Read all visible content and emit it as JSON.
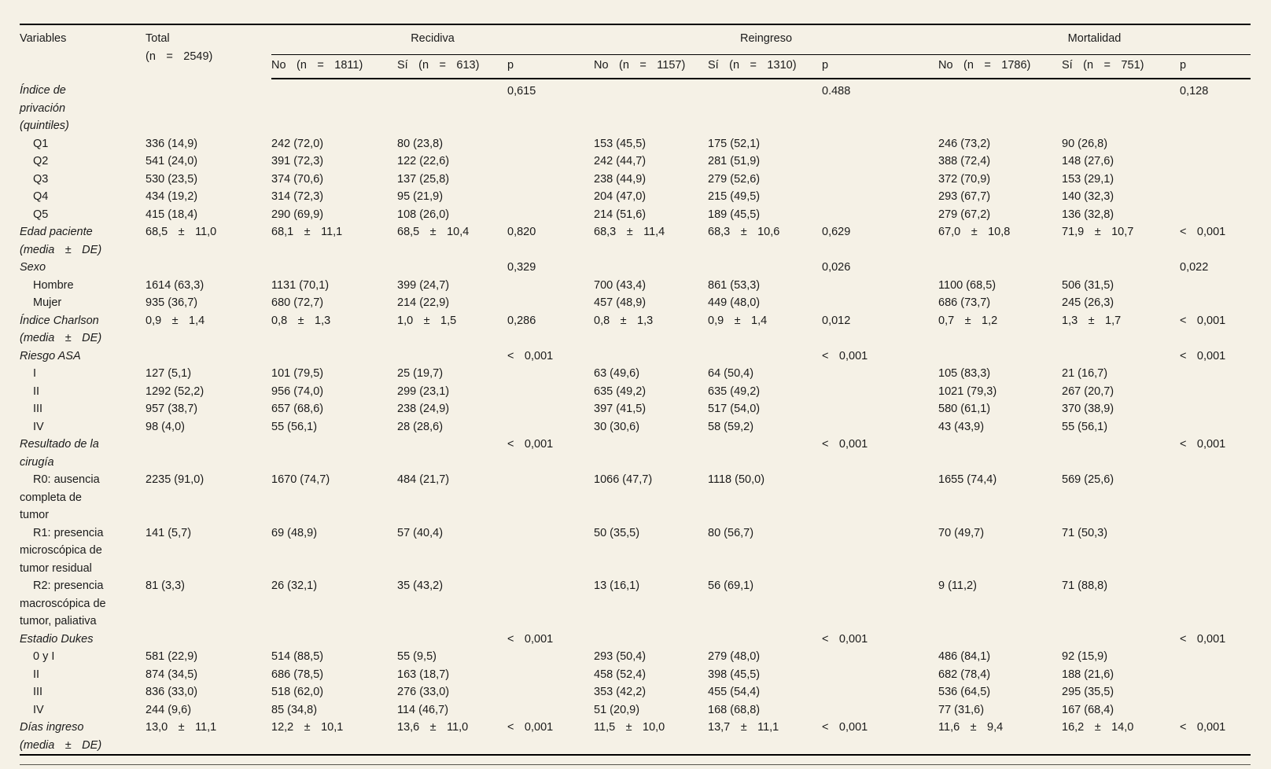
{
  "table": {
    "headers": {
      "variables": "Variables",
      "total_line1": "Total",
      "total_line2": "(n = 2549)",
      "groups": [
        {
          "label": "Recidiva",
          "sub": [
            "No (n = 1811)",
            "Sí (n = 613)",
            "p"
          ]
        },
        {
          "label": "Reingreso",
          "sub": [
            "No (n = 1157)",
            "Sí (n = 1310)",
            "p"
          ]
        },
        {
          "label": "Mortalidad",
          "sub": [
            "No (n = 1786)",
            "Sí (n = 751)",
            "p"
          ]
        }
      ]
    },
    "rows": [
      {
        "label": "Índice de privación (quintiles)",
        "style": "group",
        "cells": [
          "",
          "",
          "",
          "0,615",
          "",
          "",
          "0.488",
          "",
          "",
          "0,128"
        ]
      },
      {
        "label": "Q1",
        "style": "item",
        "cells": [
          "336 (14,9)",
          "242 (72,0)",
          "80 (23,8)",
          "",
          "153 (45,5)",
          "175 (52,1)",
          "",
          "246 (73,2)",
          "90 (26,8)",
          ""
        ]
      },
      {
        "label": "Q2",
        "style": "item",
        "cells": [
          "541 (24,0)",
          "391 (72,3)",
          "122 (22,6)",
          "",
          "242 (44,7)",
          "281 (51,9)",
          "",
          "388 (72,4)",
          "148 (27,6)",
          ""
        ]
      },
      {
        "label": "Q3",
        "style": "item",
        "cells": [
          "530 (23,5)",
          "374 (70,6)",
          "137 (25,8)",
          "",
          "238 (44,9)",
          "279 (52,6)",
          "",
          "372 (70,9)",
          "153 (29,1)",
          ""
        ]
      },
      {
        "label": "Q4",
        "style": "item",
        "cells": [
          "434 (19,2)",
          "314 (72,3)",
          "95 (21,9)",
          "",
          "204 (47,0)",
          "215 (49,5)",
          "",
          "293 (67,7)",
          "140 (32,3)",
          ""
        ]
      },
      {
        "label": "Q5",
        "style": "item",
        "cells": [
          "415 (18,4)",
          "290 (69,9)",
          "108 (26,0)",
          "",
          "214 (51,6)",
          "189 (45,5)",
          "",
          "279 (67,2)",
          "136 (32,8)",
          ""
        ]
      },
      {
        "label": "Edad paciente",
        "label2": "(media ± DE)",
        "style": "group",
        "cells": [
          "68,5 ± 11,0",
          "68,1 ± 11,1",
          "68,5 ± 10,4",
          "0,820",
          "68,3 ± 11,4",
          "68,3 ± 10,6",
          "0,629",
          "67,0 ± 10,8",
          "71,9 ± 10,7",
          "< 0,001"
        ]
      },
      {
        "label": "Sexo",
        "style": "group",
        "cells": [
          "",
          "",
          "",
          "0,329",
          "",
          "",
          "0,026",
          "",
          "",
          "0,022"
        ]
      },
      {
        "label": "Hombre",
        "style": "item",
        "cells": [
          "1614 (63,3)",
          "1131 (70,1)",
          "399 (24,7)",
          "",
          "700 (43,4)",
          "861 (53,3)",
          "",
          "1100 (68,5)",
          "506 (31,5)",
          ""
        ]
      },
      {
        "label": "Mujer",
        "style": "item",
        "cells": [
          "935 (36,7)",
          "680 (72,7)",
          "214 (22,9)",
          "",
          "457 (48,9)",
          "449 (48,0)",
          "",
          "686 (73,7)",
          "245 (26,3)",
          ""
        ]
      },
      {
        "label": "Índice Charlson",
        "label2": "(media ± DE)",
        "style": "group",
        "cells": [
          "0,9 ± 1,4",
          "0,8 ± 1,3",
          "1,0 ± 1,5",
          "0,286",
          "0,8 ± 1,3",
          "0,9 ± 1,4",
          "0,012",
          "0,7 ± 1,2",
          "1,3 ± 1,7",
          "< 0,001"
        ]
      },
      {
        "label": "Riesgo ASA",
        "style": "group",
        "cells": [
          "",
          "",
          "",
          "< 0,001",
          "",
          "",
          "< 0,001",
          "",
          "",
          "< 0,001"
        ]
      },
      {
        "label": "I",
        "style": "item",
        "cells": [
          "127 (5,1)",
          "101 (79,5)",
          "25 (19,7)",
          "",
          "63 (49,6)",
          "64 (50,4)",
          "",
          "105 (83,3)",
          "21 (16,7)",
          ""
        ]
      },
      {
        "label": "II",
        "style": "item",
        "cells": [
          "1292 (52,2)",
          "956 (74,0)",
          "299 (23,1)",
          "",
          "635 (49,2)",
          "635 (49,2)",
          "",
          "1021 (79,3)",
          "267 (20,7)",
          ""
        ]
      },
      {
        "label": "III",
        "style": "item",
        "cells": [
          "957 (38,7)",
          "657 (68,6)",
          "238 (24,9)",
          "",
          "397 (41,5)",
          "517 (54,0)",
          "",
          "580 (61,1)",
          "370 (38,9)",
          ""
        ]
      },
      {
        "label": "IV",
        "style": "item",
        "cells": [
          "98 (4,0)",
          "55 (56,1)",
          "28 (28,6)",
          "",
          "30 (30,6)",
          "58 (59,2)",
          "",
          "43 (43,9)",
          "55 (56,1)",
          ""
        ]
      },
      {
        "label": "Resultado de la cirugía",
        "style": "group",
        "cells": [
          "",
          "",
          "",
          "< 0,001",
          "",
          "",
          "< 0,001",
          "",
          "",
          "< 0,001"
        ]
      },
      {
        "label": "R0: ausencia completa de tumor",
        "style": "item",
        "cells": [
          "2235 (91,0)",
          "1670 (74,7)",
          "484 (21,7)",
          "",
          "1066 (47,7)",
          "1118 (50,0)",
          "",
          "1655 (74,4)",
          "569 (25,6)",
          ""
        ]
      },
      {
        "label": "R1: presencia microscópica de tumor residual",
        "style": "item",
        "cells": [
          "141 (5,7)",
          "69 (48,9)",
          "57 (40,4)",
          "",
          "50 (35,5)",
          "80 (56,7)",
          "",
          "70 (49,7)",
          "71 (50,3)",
          ""
        ]
      },
      {
        "label": "R2: presencia macroscópica de tumor, paliativa",
        "style": "item",
        "cells": [
          "81 (3,3)",
          "26 (32,1)",
          "35 (43,2)",
          "",
          "13 (16,1)",
          "56 (69,1)",
          "",
          "9 (11,2)",
          "71 (88,8)",
          ""
        ]
      },
      {
        "label": "Estadio Dukes",
        "style": "group",
        "cells": [
          "",
          "",
          "",
          "< 0,001",
          "",
          "",
          "< 0,001",
          "",
          "",
          "< 0,001"
        ]
      },
      {
        "label": "0 y I",
        "style": "item",
        "cells": [
          "581 (22,9)",
          "514 (88,5)",
          "55 (9,5)",
          "",
          "293 (50,4)",
          "279 (48,0)",
          "",
          "486 (84,1)",
          "92 (15,9)",
          ""
        ]
      },
      {
        "label": "II",
        "style": "item",
        "cells": [
          "874 (34,5)",
          "686 (78,5)",
          "163 (18,7)",
          "",
          "458 (52,4)",
          "398 (45,5)",
          "",
          "682 (78,4)",
          "188 (21,6)",
          ""
        ]
      },
      {
        "label": "III",
        "style": "item",
        "cells": [
          "836 (33,0)",
          "518 (62,0)",
          "276 (33,0)",
          "",
          "353 (42,2)",
          "455 (54,4)",
          "",
          "536 (64,5)",
          "295 (35,5)",
          ""
        ]
      },
      {
        "label": "IV",
        "style": "item",
        "cells": [
          "244 (9,6)",
          "85 (34,8)",
          "114 (46,7)",
          "",
          "51 (20,9)",
          "168 (68,8)",
          "",
          "77 (31,6)",
          "167 (68,4)",
          ""
        ]
      },
      {
        "label": "Días ingreso",
        "label2": "(media ± DE)",
        "style": "group",
        "cells": [
          "13,0 ± 11,1",
          "12,2 ± 10,1",
          "13,6 ± 11,0",
          "< 0,001",
          "11,5 ± 10,0",
          "13,7 ± 11,1",
          "< 0,001",
          "11,6 ± 9,4",
          "16,2 ± 14,0",
          "< 0,001"
        ]
      }
    ]
  },
  "colors": {
    "background": "#f5f1e6",
    "text": "#1b1b1b",
    "rule": "#000000"
  }
}
